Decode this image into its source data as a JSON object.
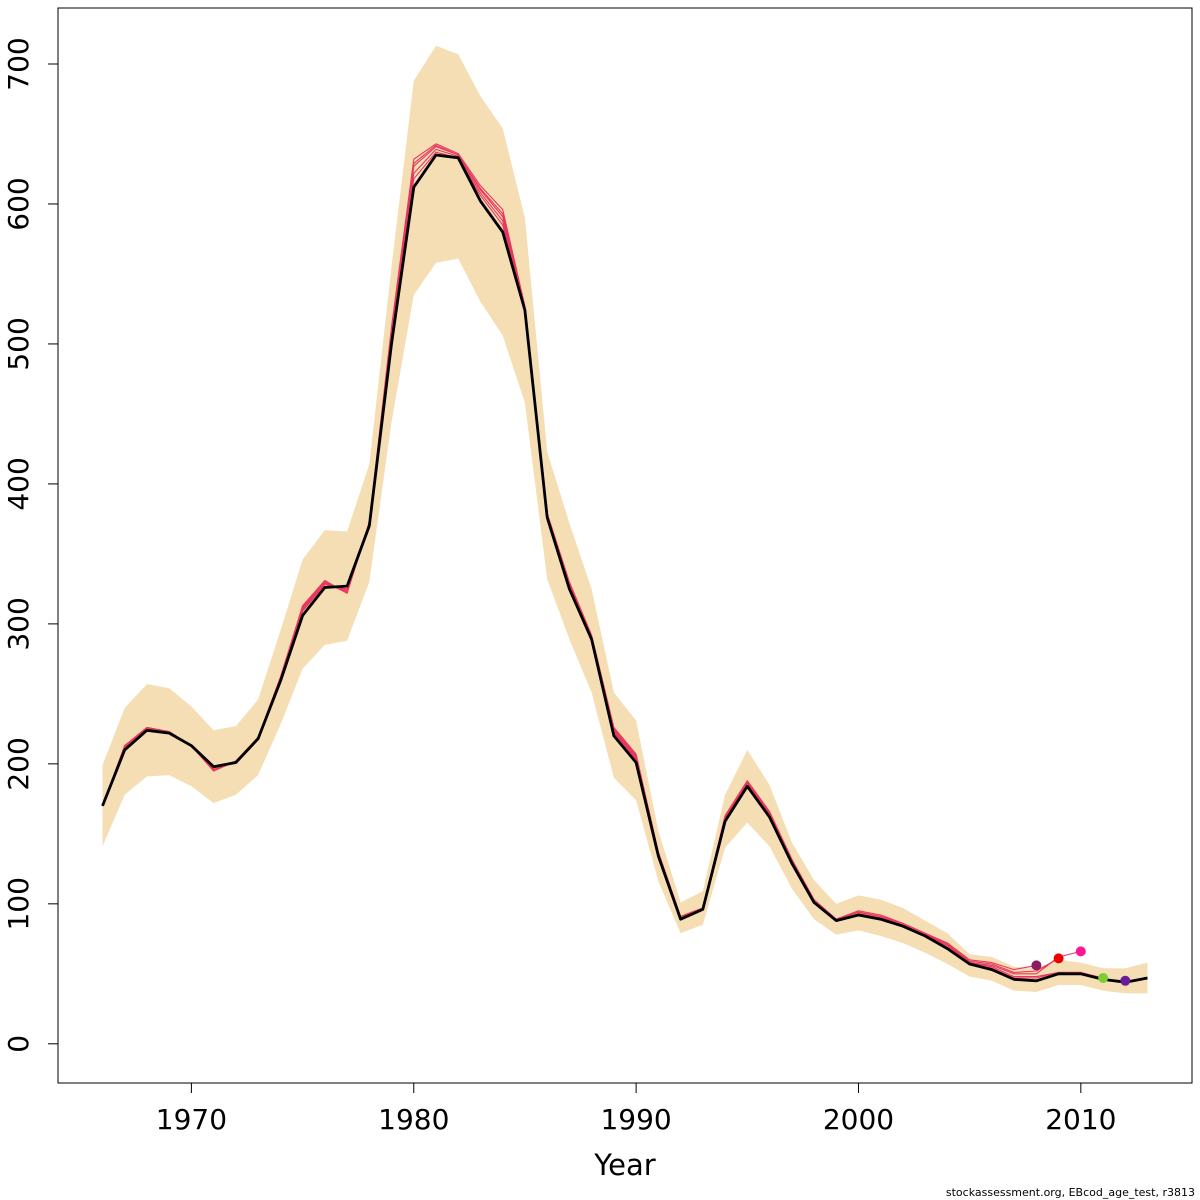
{
  "chart_data": {
    "type": "line",
    "title": "",
    "xlabel": "Year",
    "ylabel": "",
    "xlim": [
      1964,
      2015
    ],
    "ylim": [
      -28,
      740
    ],
    "x_ticks": [
      1970,
      1980,
      1990,
      2000,
      2010
    ],
    "y_ticks": [
      0,
      100,
      200,
      300,
      400,
      500,
      600,
      700
    ],
    "grid": false,
    "legend": "none",
    "footnote": "stockassessment.org, EBcod_age_test, r3813",
    "colors": {
      "band": "#f5deb3",
      "main": "#000000",
      "retro": "#e8365e",
      "axis": "#000000"
    },
    "band": {
      "x": [
        1966,
        1967,
        1968,
        1969,
        1970,
        1971,
        1972,
        1973,
        1974,
        1975,
        1976,
        1977,
        1978,
        1979,
        1980,
        1981,
        1982,
        1983,
        1984,
        1985,
        1986,
        1987,
        1988,
        1989,
        1990,
        1991,
        1992,
        1993,
        1994,
        1995,
        1996,
        1997,
        1998,
        1999,
        2000,
        2001,
        2002,
        2003,
        2004,
        2005,
        2006,
        2007,
        2008,
        2009,
        2010,
        2011,
        2012,
        2013
      ],
      "upper": [
        199,
        240,
        257,
        254,
        241,
        224,
        227,
        246,
        295,
        346,
        367,
        366,
        414,
        555,
        688,
        713,
        707,
        677,
        654,
        590,
        423,
        372,
        325,
        251,
        231,
        152,
        101,
        109,
        178,
        210,
        185,
        144,
        117,
        100,
        106,
        103,
        97,
        88,
        79,
        64,
        62,
        55,
        54,
        60,
        58,
        54,
        54,
        58
      ],
      "lower": [
        141,
        178,
        191,
        192,
        184,
        172,
        178,
        192,
        228,
        268,
        285,
        288,
        330,
        444,
        535,
        558,
        561,
        530,
        506,
        458,
        332,
        289,
        251,
        190,
        174,
        116,
        79,
        85,
        140,
        158,
        141,
        111,
        89,
        78,
        81,
        77,
        72,
        65,
        57,
        48,
        45,
        38,
        37,
        42,
        42,
        38,
        36,
        36
      ]
    },
    "series": [
      {
        "name": "",
        "role": "estimate",
        "x": [
          1966,
          1967,
          1968,
          1969,
          1970,
          1971,
          1972,
          1973,
          1974,
          1975,
          1976,
          1977,
          1978,
          1979,
          1980,
          1981,
          1982,
          1983,
          1984,
          1985,
          1986,
          1987,
          1988,
          1989,
          1990,
          1991,
          1992,
          1993,
          1994,
          1995,
          1996,
          1997,
          1998,
          1999,
          2000,
          2001,
          2002,
          2003,
          2004,
          2005,
          2006,
          2007,
          2008,
          2009,
          2010,
          2011,
          2012,
          2013
        ],
        "values": [
          170,
          210,
          224,
          222,
          213,
          198,
          201,
          218,
          259,
          306,
          326,
          327,
          370,
          500,
          612,
          635,
          633,
          602,
          580,
          524,
          376,
          325,
          289,
          220,
          201,
          134,
          89,
          96,
          159,
          184,
          162,
          129,
          101,
          88,
          92,
          89,
          84,
          77,
          68,
          57,
          53,
          46,
          45,
          50,
          50,
          46,
          44,
          47
        ]
      },
      {
        "name": "",
        "role": "retro",
        "x": [
          1966,
          1967,
          1968,
          1969,
          1970,
          1971,
          1972,
          1973,
          1974,
          1975,
          1976,
          1977,
          1978,
          1979,
          1980,
          1981,
          1982,
          1983,
          1984,
          1985,
          1986,
          1987,
          1988,
          1989,
          1990,
          1991,
          1992,
          1993,
          1994,
          1995,
          1996,
          1997,
          1998,
          1999,
          2000,
          2001,
          2002,
          2003,
          2004,
          2005,
          2006,
          2007,
          2008,
          2009,
          2010,
          2011,
          2012
        ],
        "values": [
          170,
          211,
          225,
          223,
          213,
          197,
          202,
          218,
          260,
          309,
          328,
          325,
          371,
          505,
          618,
          637,
          633,
          606,
          585,
          525,
          377,
          327,
          290,
          222,
          203,
          135,
          90,
          96,
          160,
          185,
          163,
          130,
          102,
          88,
          92,
          90,
          84,
          77,
          69,
          57,
          54,
          47,
          47,
          51,
          51,
          46,
          45
        ]
      },
      {
        "name": "",
        "role": "retro",
        "x": [
          1966,
          1967,
          1968,
          1969,
          1970,
          1971,
          1972,
          1973,
          1974,
          1975,
          1976,
          1977,
          1978,
          1979,
          1980,
          1981,
          1982,
          1983,
          1984,
          1985,
          1986,
          1987,
          1988,
          1989,
          1990,
          1991,
          1992,
          1993,
          1994,
          1995,
          1996,
          1997,
          1998,
          1999,
          2000,
          2001,
          2002,
          2003,
          2004,
          2005,
          2006,
          2007,
          2008,
          2009,
          2010,
          2011
        ],
        "values": [
          170,
          212,
          225,
          223,
          213,
          196,
          202,
          218,
          260,
          310,
          329,
          324,
          371,
          507,
          622,
          639,
          634,
          608,
          588,
          525,
          377,
          328,
          290,
          223,
          204,
          135,
          90,
          96,
          161,
          186,
          164,
          130,
          102,
          88,
          93,
          90,
          85,
          78,
          70,
          58,
          55,
          48,
          48,
          51,
          51,
          47
        ]
      },
      {
        "name": "",
        "role": "retro",
        "x": [
          1966,
          1967,
          1968,
          1969,
          1970,
          1971,
          1972,
          1973,
          1974,
          1975,
          1976,
          1977,
          1978,
          1979,
          1980,
          1981,
          1982,
          1983,
          1984,
          1985,
          1986,
          1987,
          1988,
          1989,
          1990,
          1991,
          1992,
          1993,
          1994,
          1995,
          1996,
          1997,
          1998,
          1999,
          2000,
          2001,
          2002,
          2003,
          2004,
          2005,
          2006,
          2007,
          2008,
          2009,
          2010
        ],
        "values": [
          170,
          213,
          226,
          223,
          213,
          195,
          202,
          219,
          261,
          311,
          330,
          323,
          372,
          509,
          627,
          641,
          635,
          610,
          591,
          526,
          378,
          329,
          291,
          224,
          205,
          136,
          90,
          97,
          162,
          187,
          165,
          131,
          102,
          89,
          94,
          91,
          85,
          78,
          71,
          58,
          56,
          50,
          50,
          62,
          66
        ]
      },
      {
        "name": "",
        "role": "retro",
        "x": [
          1966,
          1967,
          1968,
          1969,
          1970,
          1971,
          1972,
          1973,
          1974,
          1975,
          1976,
          1977,
          1978,
          1979,
          1980,
          1981,
          1982,
          1983,
          1984,
          1985,
          1986,
          1987,
          1988,
          1989,
          1990,
          1991,
          1992,
          1993,
          1994,
          1995,
          1996,
          1997,
          1998,
          1999,
          2000,
          2001,
          2002,
          2003,
          2004,
          2005,
          2006,
          2007,
          2008,
          2009
        ],
        "values": [
          170,
          213,
          226,
          223,
          213,
          195,
          202,
          219,
          261,
          312,
          330,
          322,
          372,
          510,
          629,
          642,
          635,
          611,
          593,
          526,
          378,
          329,
          291,
          225,
          206,
          136,
          91,
          97,
          162,
          187,
          165,
          131,
          103,
          89,
          94,
          91,
          86,
          79,
          71,
          59,
          57,
          51,
          52,
          61
        ]
      },
      {
        "name": "",
        "role": "retro",
        "x": [
          1966,
          1967,
          1968,
          1969,
          1970,
          1971,
          1972,
          1973,
          1974,
          1975,
          1976,
          1977,
          1978,
          1979,
          1980,
          1981,
          1982,
          1983,
          1984,
          1985,
          1986,
          1987,
          1988,
          1989,
          1990,
          1991,
          1992,
          1993,
          1994,
          1995,
          1996,
          1997,
          1998,
          1999,
          2000,
          2001,
          2002,
          2003,
          2004,
          2005,
          2006,
          2007,
          2008
        ],
        "values": [
          170,
          213,
          226,
          223,
          213,
          195,
          202,
          219,
          262,
          313,
          331,
          322,
          373,
          512,
          632,
          643,
          636,
          613,
          596,
          527,
          379,
          330,
          292,
          226,
          207,
          137,
          91,
          97,
          163,
          188,
          166,
          132,
          103,
          89,
          95,
          92,
          86,
          79,
          72,
          60,
          58,
          53,
          56
        ]
      }
    ],
    "endpoints": [
      {
        "x": 2008,
        "y": 56,
        "color": "#8b1c62"
      },
      {
        "x": 2009,
        "y": 61,
        "color": "#ee0000"
      },
      {
        "x": 2010,
        "y": 66,
        "color": "#ff1493"
      },
      {
        "x": 2011,
        "y": 47,
        "color": "#7ccd32"
      },
      {
        "x": 2012,
        "y": 45,
        "color": "#6a1b9a"
      }
    ]
  }
}
